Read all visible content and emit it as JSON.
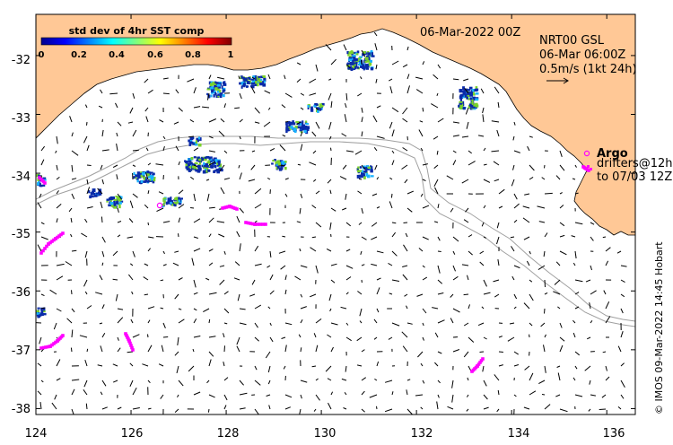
{
  "map": {
    "date_label": "06-Mar-2022 00Z",
    "product_lines": [
      "NRT00 GSL",
      "06-Mar 06:00Z",
      "0.5m/s (1kt 24h)"
    ],
    "argo_label": "Argo",
    "drifter_lines": [
      "drifters@12h",
      "to 07/03 12Z"
    ],
    "credit": "© IMOS 09-Mar-2022 14:45 Hobart",
    "colorbar": {
      "title": "std dev of 4hr SST comp",
      "ticks": [
        "0",
        "0.2",
        "0.4",
        "0.6",
        "0.8",
        "1"
      ]
    },
    "lon_ticks": [
      "124",
      "126",
      "128",
      "130",
      "132",
      "134",
      "136"
    ],
    "lat_ticks": [
      "-32",
      "-33",
      "-34",
      "-35",
      "-36",
      "-37",
      "-38"
    ],
    "lon_range": [
      124,
      136.6
    ],
    "lat_range": [
      -38.1,
      -31.3
    ],
    "colors": {
      "land": "#ffc896",
      "drifters": "#ff00ff",
      "isobath": "#a0a0a0",
      "sst_low": "#0a2aa8",
      "sst_mid": "#19b4ff",
      "sst_high": "#7ad22a"
    }
  }
}
